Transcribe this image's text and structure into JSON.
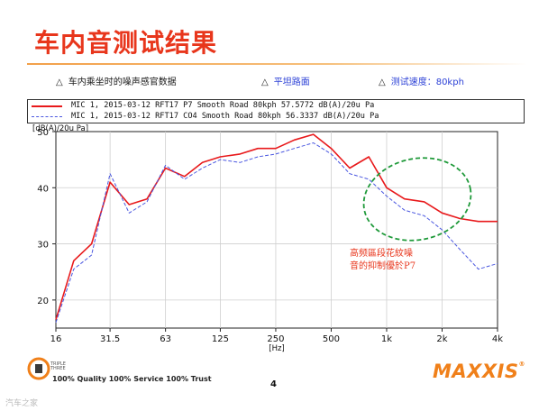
{
  "slide": {
    "title": "车内音测试结果",
    "page_number": "4",
    "tagline": "100% Quality  100% Service  100% Trust",
    "brand": "MAXXIS",
    "brand_mark": "®",
    "logo_text_1": "TRIPLE",
    "logo_text_2": "THREE",
    "corner_text": "汽车之家"
  },
  "info": {
    "item1": "车内乘坐时的噪声感官数据",
    "item2": "平坦路面",
    "item3": "测试速度：80kph",
    "triangle": "△"
  },
  "annotation": {
    "line1": "高频區段花紋噪",
    "line2": "音的抑制優於P7"
  },
  "colors": {
    "accent": "#e8361c",
    "series1": "#e8191b",
    "series2": "#4a57e0",
    "ellipse": "#1f9a3a"
  },
  "chart_data": {
    "type": "line",
    "ylabel": "[dB(A)/20u Pa]",
    "xlabel": "[Hz]",
    "x_scale": "log",
    "xlim": [
      16,
      4000
    ],
    "ylim": [
      15,
      50
    ],
    "x_ticks": [
      16,
      31.5,
      63,
      125,
      250,
      500,
      1000,
      2000,
      4000
    ],
    "x_tick_labels": [
      "16",
      "31.5",
      "63",
      "125",
      "250",
      "500",
      "1k",
      "2k",
      "4k"
    ],
    "y_ticks": [
      20,
      30,
      40,
      50
    ],
    "y_tick_labels": [
      "20",
      "30",
      "40",
      "50"
    ],
    "grid": true,
    "x": [
      16,
      20,
      25,
      31.5,
      40,
      50,
      63,
      80,
      100,
      125,
      160,
      200,
      250,
      315,
      400,
      500,
      630,
      800,
      1000,
      1250,
      1600,
      2000,
      2500,
      3150,
      4000
    ],
    "series": [
      {
        "name": "MIC 1, 2015-03-12 RFT17 P7 Smooth Road 80kph  57.5772  dB(A)/20u Pa",
        "style": "solid",
        "values": [
          16.5,
          27.0,
          30.0,
          41.0,
          37.0,
          38.0,
          43.5,
          42.0,
          44.5,
          45.5,
          46.0,
          47.0,
          47.0,
          48.5,
          49.5,
          47.0,
          43.5,
          45.5,
          40.0,
          38.0,
          37.5,
          35.5,
          34.5,
          34.0,
          34.0
        ]
      },
      {
        "name": "MIC 1, 2015-03-12 RFT17 CO4 Smooth Road 80kph  56.3337  dB(A)/20u Pa",
        "style": "dashed",
        "values": [
          16.0,
          25.5,
          28.0,
          42.5,
          35.5,
          37.5,
          44.0,
          41.5,
          43.5,
          45.0,
          44.5,
          45.5,
          46.0,
          47.0,
          48.0,
          46.0,
          42.5,
          41.5,
          38.5,
          36.0,
          35.0,
          32.5,
          29.0,
          25.5,
          26.5
        ]
      }
    ]
  }
}
